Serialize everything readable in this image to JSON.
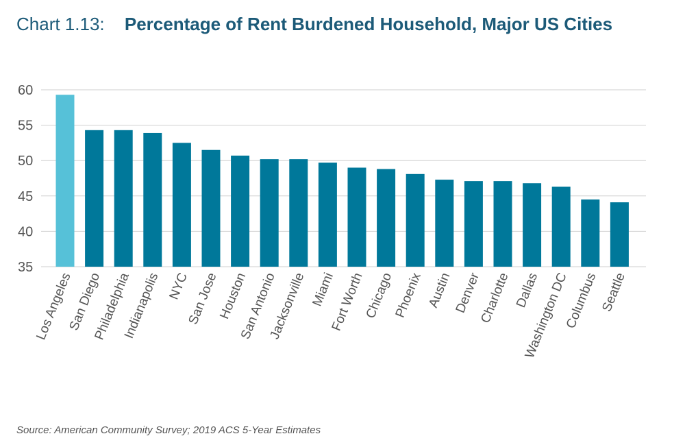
{
  "title_label": "Chart 1.13:",
  "title": "Percentage of Rent Burdened Household, Major US Cities",
  "source": "Source: American Community Survey; 2019 ACS 5-Year Estimates",
  "colors": {
    "highlight": "#56c1d8",
    "bar": "#00789a",
    "title": "#1c5a78"
  },
  "chart_data": {
    "type": "bar",
    "categories": [
      "Los Angeles",
      "San Diego",
      "Philadelphia",
      "Indianapolis",
      "NYC",
      "San Jose",
      "Houston",
      "San Antonio",
      "Jacksonville",
      "Miami",
      "Fort Worth",
      "Chicago",
      "Phoenix",
      "Austin",
      "Denver",
      "Charlotte",
      "Dallas",
      "Washington DC",
      "Columbus",
      "Seattle"
    ],
    "values": [
      59.3,
      54.3,
      54.3,
      53.9,
      52.5,
      51.5,
      50.7,
      50.2,
      50.2,
      49.7,
      49.0,
      48.8,
      48.1,
      47.3,
      47.1,
      47.1,
      46.8,
      46.3,
      44.5,
      44.1
    ],
    "highlight_index": 0,
    "ylim": [
      35,
      60
    ],
    "yticks": [
      35,
      40,
      45,
      50,
      55,
      60
    ],
    "grid": true,
    "legend": "none"
  }
}
